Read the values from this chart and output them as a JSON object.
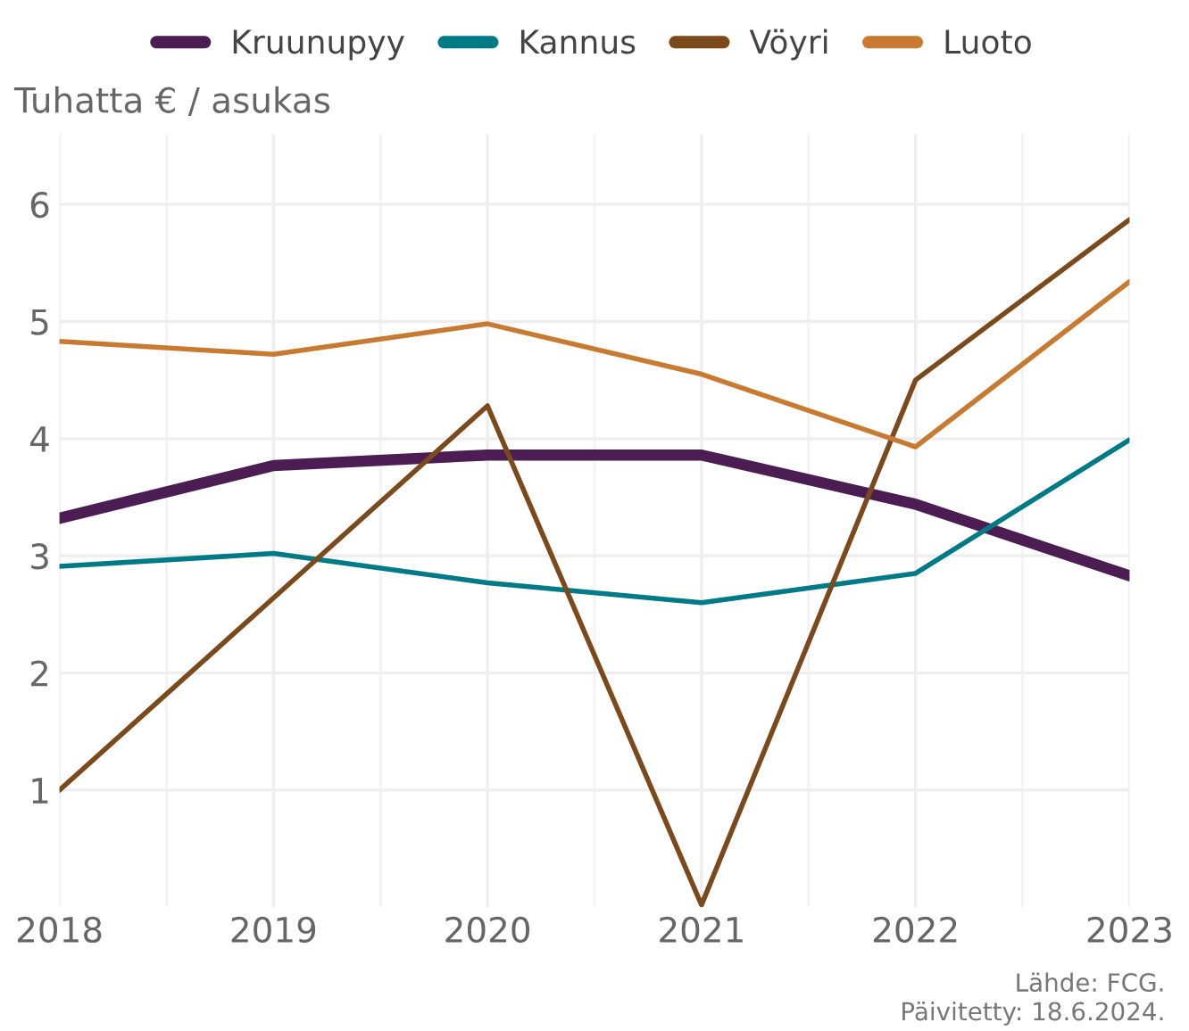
{
  "chart_data": {
    "type": "line",
    "ylabel": "Tuhatta € / asukas",
    "x": [
      2018,
      2019,
      2020,
      2021,
      2022,
      2023
    ],
    "series": [
      {
        "name": "Kruunupyy",
        "color": "#4b1d52",
        "values": [
          3.32,
          3.77,
          3.86,
          3.86,
          3.44,
          2.83
        ]
      },
      {
        "name": "Kannus",
        "color": "#007a87",
        "values": [
          2.91,
          3.02,
          2.77,
          2.6,
          2.85,
          3.99
        ]
      },
      {
        "name": "Vöyri",
        "color": "#7a4a1c",
        "values": [
          1.0,
          2.64,
          4.28,
          0.02,
          4.5,
          5.87
        ]
      },
      {
        "name": "Luoto",
        "color": "#c87b30",
        "values": [
          4.83,
          4.72,
          4.98,
          4.55,
          3.93,
          5.34
        ]
      }
    ],
    "xlim": [
      2018,
      2023
    ],
    "xticks": [
      2018,
      2019,
      2020,
      2021,
      2022,
      2023
    ],
    "ylim": [
      0,
      6.6
    ],
    "yticks": [
      1,
      2,
      3,
      4,
      5,
      6
    ],
    "grid": true,
    "legend": "top",
    "marker": "none",
    "line_style": "solid",
    "annotations": [
      "Lähde: FCG.",
      "Päivitetty: 18.6.2024."
    ]
  }
}
